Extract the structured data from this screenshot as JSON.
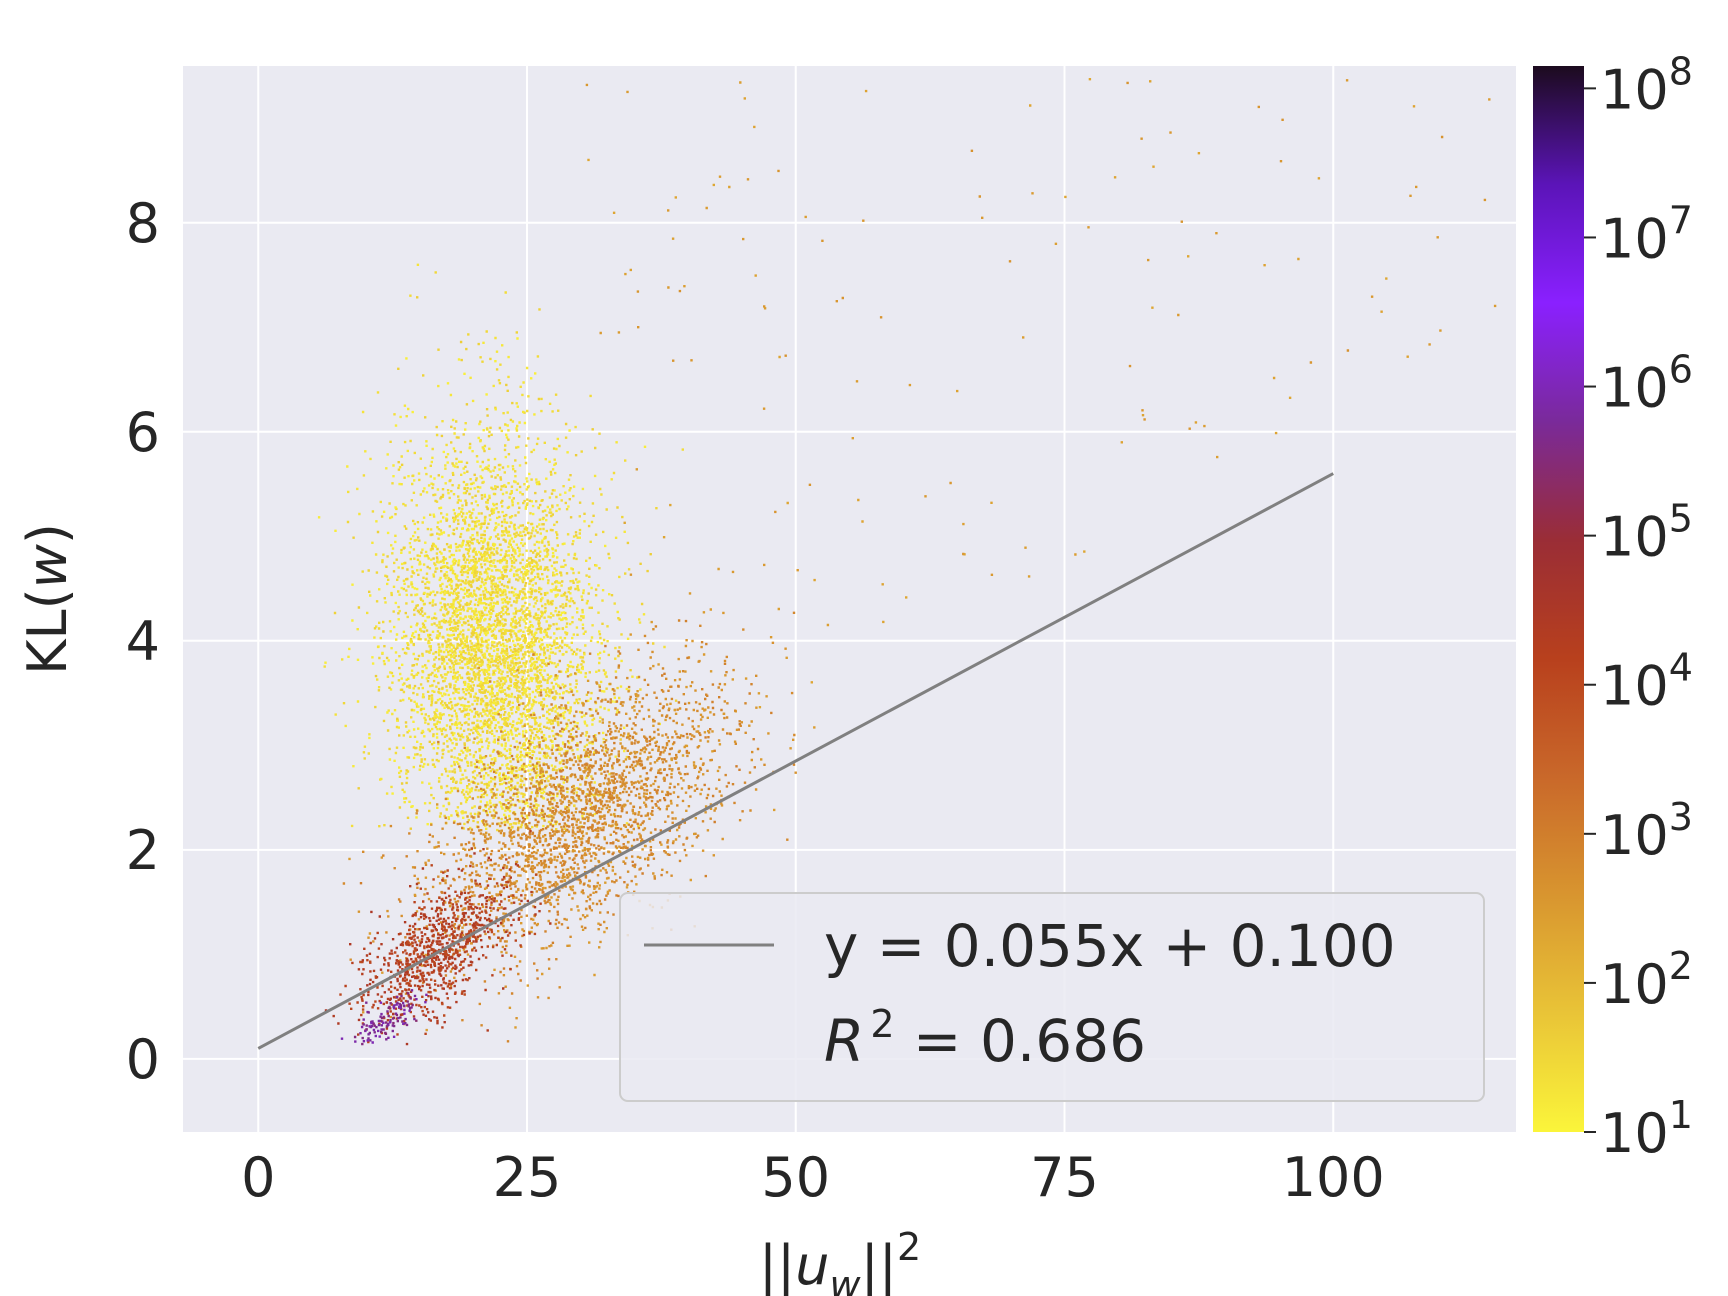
{
  "chart_data": {
    "type": "scatter",
    "xlabel_base": "||u",
    "xlabel_sub": "w",
    "xlabel_tail": "||",
    "xlabel_sup": "2",
    "ylabel_main": "KL(",
    "ylabel_var": "w",
    "ylabel_tail": ")",
    "xlim": [
      -7,
      117
    ],
    "ylim": [
      -0.7,
      9.5
    ],
    "x_ticks": [
      0,
      25,
      50,
      75,
      100
    ],
    "x_tick_labels": [
      "0",
      "25",
      "50",
      "75",
      "100"
    ],
    "y_ticks": [
      0,
      2,
      4,
      6,
      8
    ],
    "y_tick_labels": [
      "0",
      "2",
      "4",
      "6",
      "8"
    ],
    "grid": true,
    "background": "#eaeaf2",
    "fit_line": {
      "slope": 0.055,
      "intercept": 0.1,
      "x_range": [
        0,
        100
      ],
      "color": "#808080"
    },
    "legend": {
      "placement": "lower-right",
      "line1": "y = 0.055x + 0.100",
      "line2_var": "R",
      "line2_sup": "2",
      "line2_tail": " = 0.686"
    },
    "colorbar": {
      "scale": "log",
      "range_exponents": [
        1,
        8.15
      ],
      "tick_base": "10",
      "tick_exponents": [
        "1",
        "2",
        "3",
        "4",
        "5",
        "6",
        "7",
        "8"
      ],
      "colormap": "gnuplot2-like",
      "colors": [
        "#fbf53a",
        "#e9c437",
        "#d8952f",
        "#c9682a",
        "#b8401d",
        "#9a2d36",
        "#7a2a9a",
        "#8a20ff",
        "#5b14b8",
        "#1c0b1e"
      ]
    },
    "density_clusters": [
      {
        "name": "yellow-cloud",
        "cx": 22,
        "cy": 3.9,
        "sx": 4.8,
        "sy": 1.05,
        "count": 5200,
        "level": 0.05
      },
      {
        "name": "orange-band",
        "cx": 30,
        "cy": 2.35,
        "sx": 7.0,
        "sy": 0.55,
        "count": 2600,
        "level": 0.24
      },
      {
        "name": "red-tail",
        "cx": 16.5,
        "cy": 1.05,
        "sx": 3.6,
        "sy": 0.28,
        "count": 900,
        "level": 0.45
      },
      {
        "name": "purple-tip",
        "cx": 11.8,
        "cy": 0.38,
        "sx": 1.7,
        "sy": 0.09,
        "count": 120,
        "level": 0.66
      }
    ]
  }
}
